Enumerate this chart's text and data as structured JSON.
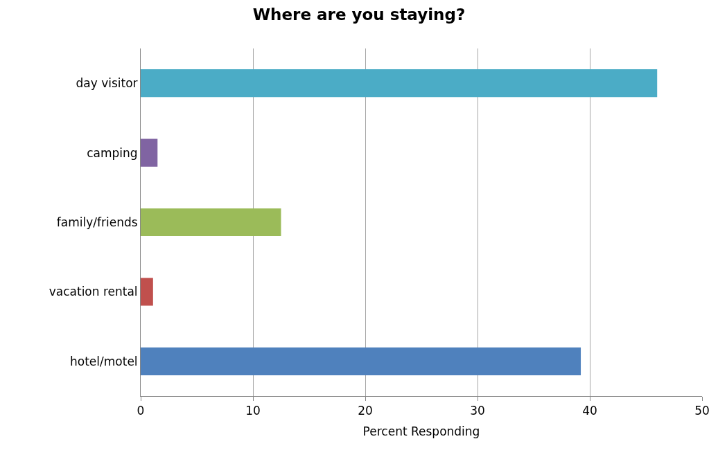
{
  "chart_data": {
    "type": "bar",
    "orientation": "horizontal",
    "title": "Where are you staying?",
    "xlabel": "Percent Responding",
    "categories": [
      "day visitor",
      "camping",
      "family/friends",
      "vacation rental",
      "hotel/motel"
    ],
    "values": [
      46.0,
      1.5,
      12.5,
      1.1,
      39.2
    ],
    "colors": [
      "#4bacc6",
      "#8064a2",
      "#9bbb59",
      "#c0504d",
      "#4f81bd"
    ],
    "xlim": [
      0,
      50
    ],
    "xticks": [
      0,
      10,
      20,
      30,
      40,
      50
    ],
    "grid": "x"
  }
}
